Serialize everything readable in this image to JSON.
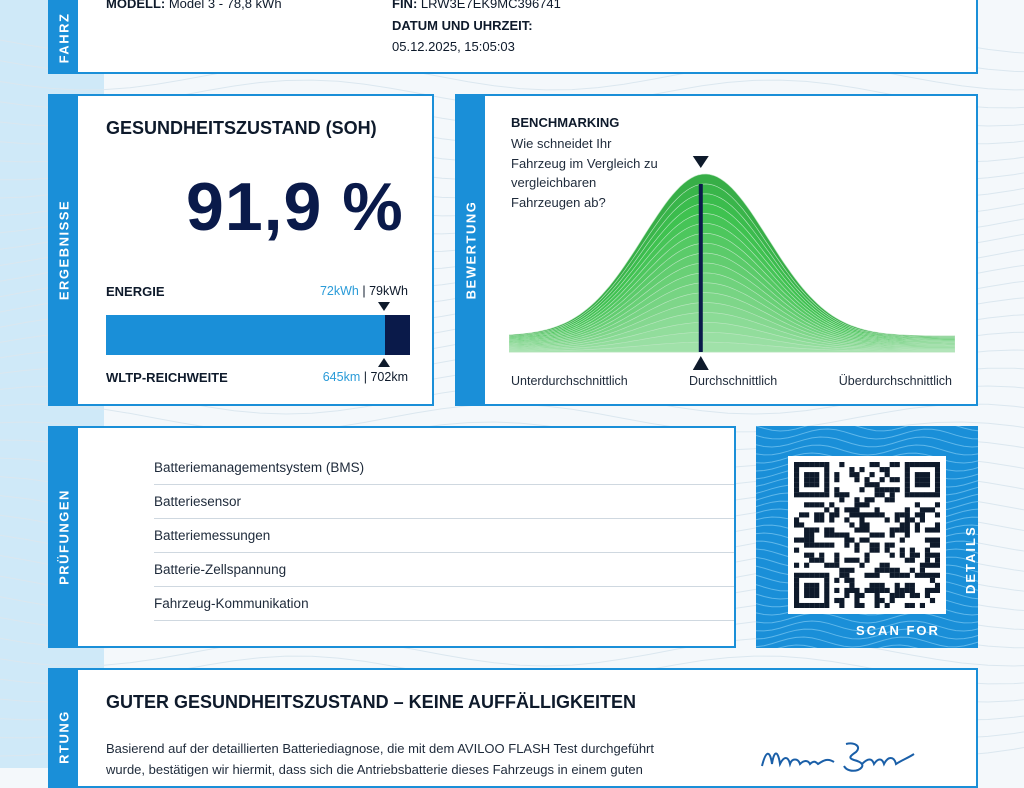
{
  "vehicle": {
    "side_label": "FAHRZ",
    "model_label": "MODELL:",
    "model_value": "Model 3 - 78,8 kWh",
    "fin_label": "FIN:",
    "fin_value": "LRW3E7EK9MC396741",
    "datetime_label": "DATUM UND UHRZEIT:",
    "datetime_value": "05.12.2025, 15:05:03"
  },
  "results": {
    "side_label": "ERGEBNISSE",
    "title": "GESUNDHEITSZUSTAND (SOH)",
    "soh_value": "91,9 %",
    "energy_label": "ENERGIE",
    "energy_current": "72kWh",
    "energy_total": "79kWh",
    "range_label": "WLTP-REICHWEITE",
    "range_current": "645km",
    "range_total": "702km",
    "bar_fraction": 0.919,
    "separator": "|"
  },
  "benchmark": {
    "side_label": "BEWERTUNG",
    "title": "BENCHMARKING",
    "question_lines": [
      "Wie schneidet Ihr",
      "Fahrzeug im Vergleich zu",
      "vergleichbaren",
      "Fahrzeugen ab?"
    ],
    "left_label": "Unterdurchschnittlich",
    "mid_label": "Durchschnittlich",
    "right_label": "Überdurchschnittlich",
    "marker_position": 0.43
  },
  "checks": {
    "side_label": "PRÜFUNGEN",
    "items": [
      {
        "label": "Batteriemanagementsystem (BMS)",
        "mark": "✓"
      },
      {
        "label": "Batteriesensor",
        "mark": "✓"
      },
      {
        "label": "Batteriemessungen",
        "mark": "✓"
      },
      {
        "label": "Batterie-Zellspannung",
        "mark": "✓"
      },
      {
        "label": "Fahrzeug-Kommunikation",
        "mark": "✓"
      }
    ]
  },
  "qr": {
    "scan_label": "SCAN FOR",
    "details_label": "DETAILS"
  },
  "summary": {
    "side_label": "RTUNG",
    "title": "GUTER GESUNDHEITSZUSTAND – KEINE AUFFÄLLIGKEITEN",
    "line1": "Basierend auf der detaillierten Batteriediagnose, die mit dem AVILOO FLASH Test durchgeführt",
    "line2": "wurde, bestätigen wir hiermit, dass sich die Antriebsbatterie dieses Fahrzeugs in einem guten"
  },
  "colors": {
    "accent": "#1a8fd8",
    "navy": "#0a1a4a",
    "bar_blue": "#1a8fd8",
    "curve_green": "#3db34a"
  }
}
